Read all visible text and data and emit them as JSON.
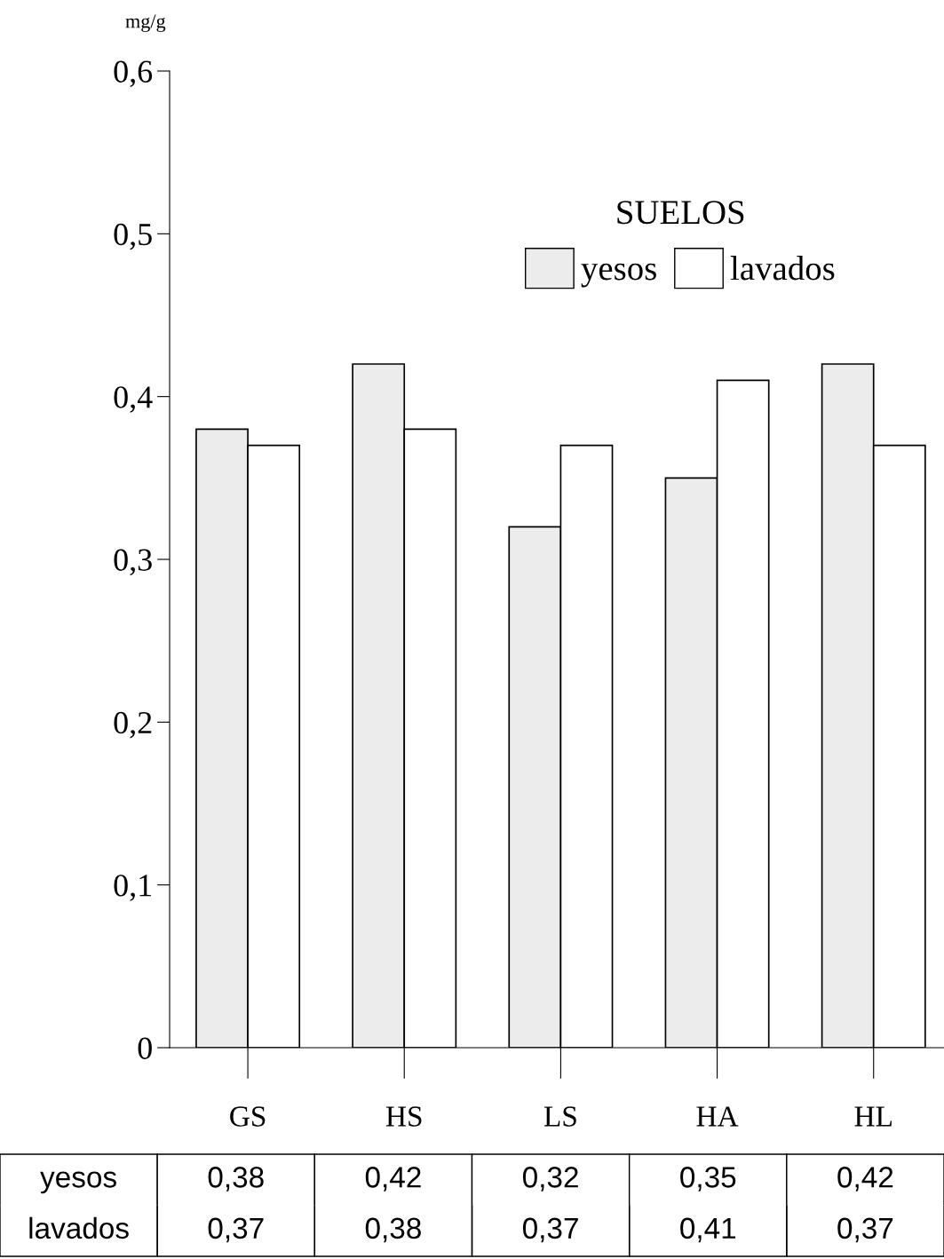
{
  "chart_data": {
    "type": "bar",
    "ylabel": "mg/g",
    "legend_title": "SUELOS",
    "categories": [
      "GS",
      "HS",
      "LS",
      "HA",
      "HL"
    ],
    "series": [
      {
        "name": "yesos",
        "color": "#ececec",
        "values": [
          0.38,
          0.42,
          0.32,
          0.35,
          0.42
        ],
        "value_labels": [
          "0,38",
          "0,42",
          "0,32",
          "0,35",
          "0,42"
        ]
      },
      {
        "name": "lavados",
        "color": "#ffffff",
        "values": [
          0.37,
          0.38,
          0.37,
          0.41,
          0.37
        ],
        "value_labels": [
          "0,37",
          "0,38",
          "0,37",
          "0,41",
          "0,37"
        ]
      }
    ],
    "ylim": [
      0,
      0.6
    ],
    "yticks": [
      0,
      {
        "value": 0.1,
        "label": "0,1"
      },
      {
        "value": 0.2,
        "label": "0,2"
      },
      {
        "value": 0.3,
        "label": "0,3"
      },
      {
        "value": 0.4,
        "label": "0,4"
      },
      {
        "value": 0.5,
        "label": "0,5"
      },
      {
        "value": 0.6,
        "label": "0,6"
      }
    ],
    "grid": false,
    "legend": "top right"
  }
}
